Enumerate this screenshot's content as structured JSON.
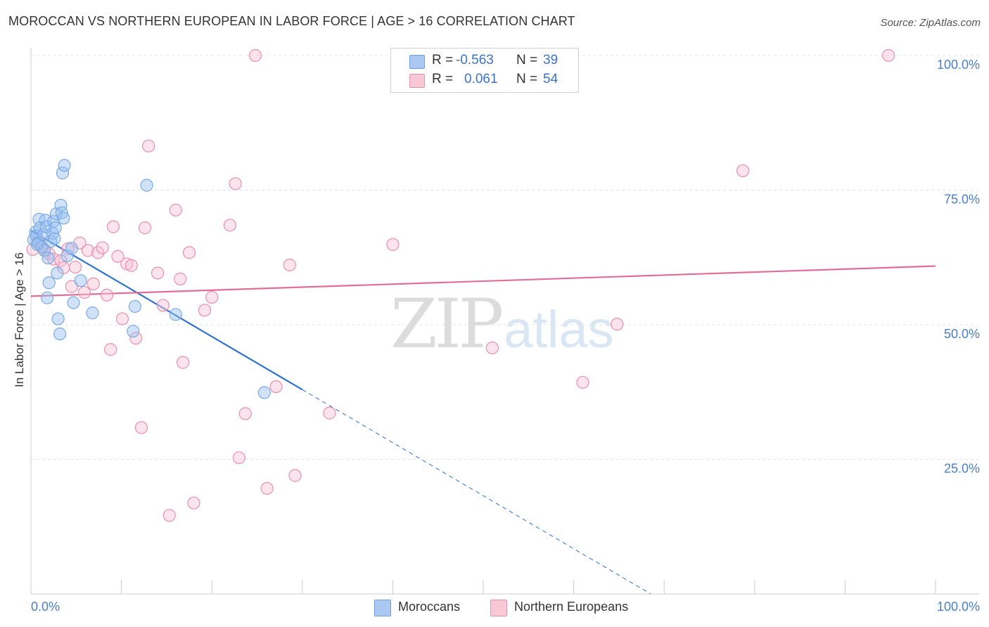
{
  "title": "MOROCCAN VS NORTHERN EUROPEAN IN LABOR FORCE | AGE > 16 CORRELATION CHART",
  "source": "Source: ZipAtlas.com",
  "watermark": {
    "part1": "ZIP",
    "part2": "atlas"
  },
  "stats": [
    {
      "r_label": "R =",
      "r_value": "-0.563",
      "n_label": "N =",
      "n_value": "39",
      "color": "#aac8f0",
      "border": "#6fa0dc"
    },
    {
      "r_label": "R =",
      "r_value": "0.061",
      "n_label": "N =",
      "n_value": "54",
      "color": "#f8c8d6",
      "border": "#e98fae"
    }
  ],
  "legend": [
    {
      "label": "Moroccans",
      "color": "#aac8f0",
      "border": "#6fa0dc"
    },
    {
      "label": "Northern Europeans",
      "color": "#f8c8d6",
      "border": "#e98fae"
    }
  ],
  "chart_data": {
    "type": "scatter",
    "ylabel": "In Labor Force | Age > 16",
    "xlabel": "",
    "xlim": [
      0,
      100
    ],
    "ylim": [
      0,
      100
    ],
    "x_tick_labels": [
      {
        "value": 0,
        "label": "0.0%"
      },
      {
        "value": 100,
        "label": "100.0%"
      }
    ],
    "y_tick_labels": [
      {
        "value": 25,
        "label": "25.0%"
      },
      {
        "value": 50,
        "label": "50.0%"
      },
      {
        "value": 75,
        "label": "75.0%"
      },
      {
        "value": 100,
        "label": "100.0%"
      }
    ],
    "series": [
      {
        "name": "Moroccans",
        "color": "#7aaae3",
        "fill": "rgba(150,190,240,0.45)",
        "line_color": "#2e72cf",
        "trend": {
          "x0": 0,
          "y0": 67.5,
          "x_solid_end": 30,
          "x_dash_end": 68.5,
          "slope": -0.985
        },
        "points": [
          [
            0.3,
            65.8
          ],
          [
            0.5,
            67.2
          ],
          [
            0.6,
            66.5
          ],
          [
            0.8,
            65.2
          ],
          [
            0.9,
            69.6
          ],
          [
            1.0,
            68.0
          ],
          [
            1.2,
            64.5
          ],
          [
            1.4,
            66.8
          ],
          [
            1.5,
            63.8
          ],
          [
            1.6,
            69.4
          ],
          [
            1.7,
            68.2
          ],
          [
            1.8,
            55.0
          ],
          [
            1.9,
            62.4
          ],
          [
            2.0,
            57.8
          ],
          [
            2.2,
            65.5
          ],
          [
            2.4,
            67.0
          ],
          [
            2.5,
            69.2
          ],
          [
            2.6,
            66.0
          ],
          [
            2.7,
            68.0
          ],
          [
            2.8,
            70.6
          ],
          [
            2.9,
            59.6
          ],
          [
            3.0,
            51.1
          ],
          [
            3.2,
            48.3
          ],
          [
            3.3,
            72.2
          ],
          [
            3.4,
            70.8
          ],
          [
            3.5,
            78.2
          ],
          [
            3.6,
            69.8
          ],
          [
            3.7,
            79.6
          ],
          [
            4.0,
            62.8
          ],
          [
            4.5,
            64.2
          ],
          [
            4.7,
            54.1
          ],
          [
            5.5,
            58.2
          ],
          [
            6.8,
            52.2
          ],
          [
            11.3,
            48.8
          ],
          [
            11.5,
            53.4
          ],
          [
            12.8,
            75.9
          ],
          [
            16.0,
            51.9
          ],
          [
            25.8,
            37.4
          ],
          [
            0.7,
            64.9
          ]
        ]
      },
      {
        "name": "Northern Europeans",
        "color": "#e98fae",
        "fill": "rgba(248,195,212,0.45)",
        "line_color": "#e06e99",
        "trend": {
          "x0": 0,
          "y0": 55.3,
          "x_solid_end": 100,
          "slope": 0.056
        },
        "points": [
          [
            0.2,
            64.0
          ],
          [
            0.8,
            65.6
          ],
          [
            1.3,
            64.3
          ],
          [
            1.5,
            63.9
          ],
          [
            2.0,
            63.2
          ],
          [
            2.5,
            62.2
          ],
          [
            3.3,
            61.9
          ],
          [
            3.6,
            60.6
          ],
          [
            4.1,
            64.1
          ],
          [
            4.5,
            57.1
          ],
          [
            4.9,
            60.7
          ],
          [
            5.4,
            65.2
          ],
          [
            5.9,
            56.0
          ],
          [
            6.3,
            63.8
          ],
          [
            6.9,
            57.6
          ],
          [
            7.4,
            63.4
          ],
          [
            7.9,
            64.3
          ],
          [
            8.4,
            55.5
          ],
          [
            8.8,
            45.4
          ],
          [
            9.1,
            68.2
          ],
          [
            9.6,
            62.7
          ],
          [
            10.1,
            51.1
          ],
          [
            10.6,
            61.3
          ],
          [
            11.1,
            61.0
          ],
          [
            11.6,
            47.5
          ],
          [
            12.2,
            30.9
          ],
          [
            12.6,
            68.0
          ],
          [
            13.0,
            83.2
          ],
          [
            14.0,
            59.6
          ],
          [
            14.6,
            53.6
          ],
          [
            15.3,
            14.6
          ],
          [
            16.0,
            71.3
          ],
          [
            16.5,
            58.5
          ],
          [
            16.8,
            43.0
          ],
          [
            17.5,
            63.4
          ],
          [
            18.0,
            16.9
          ],
          [
            19.2,
            52.7
          ],
          [
            20.0,
            55.1
          ],
          [
            22.0,
            68.5
          ],
          [
            22.6,
            76.2
          ],
          [
            23.0,
            25.3
          ],
          [
            23.7,
            33.5
          ],
          [
            24.8,
            100.0
          ],
          [
            26.1,
            19.6
          ],
          [
            27.1,
            38.5
          ],
          [
            28.6,
            61.1
          ],
          [
            29.2,
            22.0
          ],
          [
            33.0,
            33.6
          ],
          [
            40.0,
            64.9
          ],
          [
            51.0,
            45.7
          ],
          [
            61.0,
            39.3
          ],
          [
            64.8,
            50.1
          ],
          [
            78.7,
            78.6
          ],
          [
            94.8,
            100.0
          ]
        ]
      }
    ]
  }
}
